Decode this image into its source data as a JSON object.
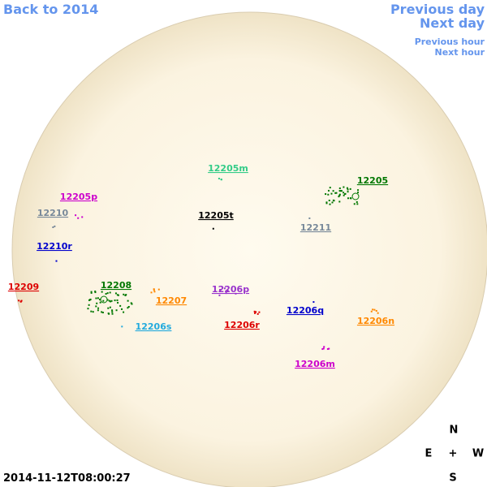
{
  "navigation": {
    "back": "Back to 2014",
    "previous_day": "Previous day",
    "next_day": "Next day",
    "previous_hour": "Previous hour",
    "next_hour": "Next hour"
  },
  "regions": [
    {
      "label": "12205m",
      "color": "#33cc88"
    },
    {
      "label": "12205",
      "color": "#007700"
    },
    {
      "label": "12205p",
      "color": "#cc00cc"
    },
    {
      "label": "12210",
      "color": "#778899"
    },
    {
      "label": "12205t",
      "color": "#000000"
    },
    {
      "label": "12211",
      "color": "#778899"
    },
    {
      "label": "12210r",
      "color": "#0000cc"
    },
    {
      "label": "12209",
      "color": "#dd0000"
    },
    {
      "label": "12208",
      "color": "#007700"
    },
    {
      "label": "12206p",
      "color": "#9933cc"
    },
    {
      "label": "12207",
      "color": "#ff8800"
    },
    {
      "label": "12206q",
      "color": "#0000cc"
    },
    {
      "label": "12206n",
      "color": "#ff8800"
    },
    {
      "label": "12206s",
      "color": "#22aadd"
    },
    {
      "label": "12206r",
      "color": "#dd0000"
    },
    {
      "label": "12206m",
      "color": "#cc00cc"
    }
  ],
  "compass": {
    "north": "N",
    "east": "E",
    "center": "+",
    "west": "W",
    "south": "S"
  },
  "timestamp": "2014-11-12T08:00:27"
}
